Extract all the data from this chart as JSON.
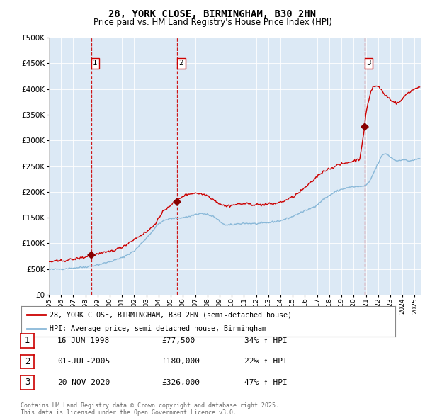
{
  "title": "28, YORK CLOSE, BIRMINGHAM, B30 2HN",
  "subtitle": "Price paid vs. HM Land Registry's House Price Index (HPI)",
  "plot_bg_color": "#dce9f5",
  "red_line_color": "#cc0000",
  "blue_line_color": "#89b8d8",
  "marker_color": "#880000",
  "dashed_line_color": "#cc0000",
  "legend_label_red": "28, YORK CLOSE, BIRMINGHAM, B30 2HN (semi-detached house)",
  "legend_label_blue": "HPI: Average price, semi-detached house, Birmingham",
  "transactions": [
    {
      "num": 1,
      "date": "16-JUN-1998",
      "price": 77500,
      "year": 1998.46,
      "hpi_pct": "34% ↑ HPI"
    },
    {
      "num": 2,
      "date": "01-JUL-2005",
      "price": 180000,
      "year": 2005.5,
      "hpi_pct": "22% ↑ HPI"
    },
    {
      "num": 3,
      "date": "20-NOV-2020",
      "price": 326000,
      "year": 2020.89,
      "hpi_pct": "47% ↑ HPI"
    }
  ],
  "footer": "Contains HM Land Registry data © Crown copyright and database right 2025.\nThis data is licensed under the Open Government Licence v3.0.",
  "ylim": [
    0,
    500000
  ],
  "yticks": [
    0,
    50000,
    100000,
    150000,
    200000,
    250000,
    300000,
    350000,
    400000,
    450000,
    500000
  ],
  "xmin": 1995,
  "xmax": 2025.5
}
